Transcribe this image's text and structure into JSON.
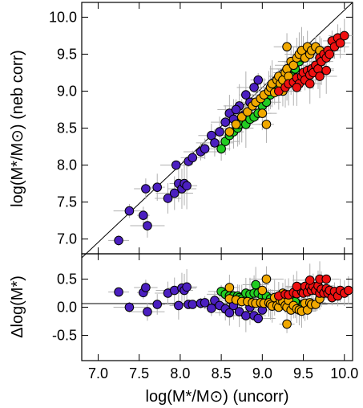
{
  "chart_data": [
    {
      "type": "scatter",
      "panel": "top",
      "ylabel": "log(M*/M⊙) (neb corr)",
      "xlim": [
        6.8,
        10.1
      ],
      "ylim": [
        6.8,
        10.2
      ],
      "x_ticks": [
        "7.0",
        "7.5",
        "8.0",
        "8.5",
        "9.0",
        "9.5",
        "10.0"
      ],
      "y_ticks": [
        "7.0",
        "7.5",
        "8.0",
        "8.5",
        "9.0",
        "9.5",
        "10.0"
      ],
      "reference_line": "one-to-one",
      "error_bars": true,
      "series": [
        {
          "color": "#4b1fc0",
          "points": [
            [
              7.25,
              6.98
            ],
            [
              7.38,
              7.38
            ],
            [
              7.55,
              7.32
            ],
            [
              7.58,
              7.68
            ],
            [
              7.6,
              7.18
            ],
            [
              7.72,
              7.7
            ],
            [
              7.85,
              7.55
            ],
            [
              7.93,
              7.62
            ],
            [
              7.98,
              7.75
            ],
            [
              8.02,
              7.68
            ],
            [
              8.05,
              7.75
            ],
            [
              8.08,
              7.72
            ],
            [
              7.95,
              8.0
            ],
            [
              8.1,
              8.05
            ],
            [
              8.15,
              8.1
            ],
            [
              8.25,
              8.18
            ],
            [
              8.3,
              8.22
            ],
            [
              8.38,
              8.4
            ],
            [
              8.42,
              8.3
            ],
            [
              8.48,
              8.45
            ],
            [
              8.55,
              8.58
            ],
            [
              8.6,
              8.7
            ],
            [
              8.65,
              8.62
            ],
            [
              8.72,
              8.8
            ],
            [
              8.8,
              8.95
            ],
            [
              8.85,
              8.85
            ],
            [
              8.9,
              9.05
            ],
            [
              8.95,
              9.15
            ],
            [
              8.78,
              8.68
            ],
            [
              8.68,
              8.75
            ]
          ]
        },
        {
          "color": "#22cc22",
          "points": [
            [
              8.5,
              8.22
            ],
            [
              8.55,
              8.32
            ],
            [
              8.6,
              8.4
            ],
            [
              8.65,
              8.45
            ],
            [
              8.7,
              8.5
            ],
            [
              8.72,
              8.55
            ],
            [
              8.75,
              8.6
            ],
            [
              8.8,
              8.55
            ],
            [
              8.85,
              8.62
            ],
            [
              8.9,
              8.65
            ],
            [
              8.95,
              8.7
            ],
            [
              9.0,
              8.8
            ],
            [
              9.05,
              8.85
            ],
            [
              9.1,
              8.95
            ],
            [
              9.15,
              9.0
            ],
            [
              9.2,
              9.05
            ],
            [
              9.3,
              9.1
            ],
            [
              9.35,
              9.2
            ],
            [
              9.45,
              9.4
            ],
            [
              9.5,
              9.45
            ],
            [
              9.55,
              9.5
            ],
            [
              9.4,
              9.3
            ]
          ]
        },
        {
          "color": "#f0a800",
          "points": [
            [
              8.6,
              8.45
            ],
            [
              8.68,
              8.55
            ],
            [
              8.75,
              8.65
            ],
            [
              8.82,
              8.72
            ],
            [
              8.88,
              8.8
            ],
            [
              8.92,
              8.85
            ],
            [
              8.98,
              8.9
            ],
            [
              9.02,
              8.95
            ],
            [
              9.05,
              8.55
            ],
            [
              9.08,
              9.0
            ],
            [
              9.1,
              9.05
            ],
            [
              9.12,
              9.1
            ],
            [
              9.15,
              8.98
            ],
            [
              9.18,
              9.15
            ],
            [
              9.2,
              9.2
            ],
            [
              9.22,
              9.1
            ],
            [
              9.25,
              9.15
            ],
            [
              9.28,
              9.25
            ],
            [
              9.3,
              9.3
            ],
            [
              9.32,
              9.2
            ],
            [
              9.35,
              9.4
            ],
            [
              9.38,
              9.35
            ],
            [
              9.42,
              9.45
            ],
            [
              9.45,
              9.5
            ],
            [
              9.48,
              9.55
            ],
            [
              9.52,
              9.45
            ],
            [
              9.55,
              9.6
            ],
            [
              9.58,
              9.5
            ],
            [
              9.6,
              9.55
            ],
            [
              9.65,
              9.6
            ],
            [
              9.7,
              9.55
            ],
            [
              9.3,
              9.6
            ],
            [
              9.25,
              9.0
            ],
            [
              9.0,
              8.7
            ]
          ]
        },
        {
          "color": "#ee1111",
          "points": [
            [
              9.2,
              9.0
            ],
            [
              9.28,
              9.05
            ],
            [
              9.32,
              9.1
            ],
            [
              9.38,
              9.12
            ],
            [
              9.42,
              9.18
            ],
            [
              9.45,
              9.1
            ],
            [
              9.48,
              9.2
            ],
            [
              9.5,
              9.25
            ],
            [
              9.52,
              9.15
            ],
            [
              9.55,
              9.28
            ],
            [
              9.58,
              9.22
            ],
            [
              9.6,
              9.3
            ],
            [
              9.62,
              9.25
            ],
            [
              9.65,
              9.35
            ],
            [
              9.68,
              9.3
            ],
            [
              9.7,
              9.45
            ],
            [
              9.72,
              9.4
            ],
            [
              9.75,
              9.5
            ],
            [
              9.78,
              9.45
            ],
            [
              9.8,
              9.55
            ],
            [
              9.82,
              9.5
            ],
            [
              9.85,
              9.68
            ],
            [
              9.88,
              9.6
            ],
            [
              9.92,
              9.72
            ],
            [
              9.95,
              9.65
            ],
            [
              10.0,
              9.75
            ],
            [
              9.42,
              9.05
            ],
            [
              9.58,
              9.1
            ],
            [
              9.7,
              9.2
            ],
            [
              9.78,
              9.28
            ]
          ]
        }
      ]
    },
    {
      "type": "scatter",
      "panel": "bottom",
      "xlabel": "log(M*/M⊙) (uncorr)",
      "ylabel": "Δlog(M*)",
      "xlim": [
        6.8,
        10.1
      ],
      "ylim": [
        -0.95,
        0.95
      ],
      "x_ticks": [
        "7.0",
        "7.5",
        "8.0",
        "8.5",
        "9.0",
        "9.5",
        "10.0"
      ],
      "y_ticks": [
        "0.5",
        "0.0",
        "-0.5"
      ],
      "reference_line": "zero",
      "error_bars": true,
      "series": [
        {
          "color": "#4b1fc0",
          "points": [
            [
              7.25,
              0.27
            ],
            [
              7.38,
              0.0
            ],
            [
              7.55,
              0.26
            ],
            [
              7.58,
              0.35
            ],
            [
              7.6,
              -0.08
            ],
            [
              7.72,
              0.05
            ],
            [
              7.85,
              0.25
            ],
            [
              7.93,
              0.3
            ],
            [
              7.98,
              0.03
            ],
            [
              8.02,
              0.34
            ],
            [
              8.05,
              0.3
            ],
            [
              8.08,
              0.36
            ],
            [
              8.1,
              0.05
            ],
            [
              8.15,
              0.05
            ],
            [
              8.25,
              0.07
            ],
            [
              8.3,
              0.08
            ],
            [
              8.38,
              -0.02
            ],
            [
              8.42,
              0.12
            ],
            [
              8.48,
              0.03
            ],
            [
              8.55,
              -0.03
            ],
            [
              8.6,
              -0.1
            ],
            [
              8.65,
              0.03
            ],
            [
              8.72,
              -0.08
            ],
            [
              8.8,
              -0.15
            ],
            [
              8.85,
              0.0
            ],
            [
              8.9,
              -0.15
            ],
            [
              8.95,
              -0.2
            ],
            [
              9.0,
              -0.05
            ]
          ]
        },
        {
          "color": "#22cc22",
          "points": [
            [
              8.5,
              0.28
            ],
            [
              8.55,
              0.23
            ],
            [
              8.6,
              0.2
            ],
            [
              8.65,
              0.2
            ],
            [
              8.7,
              0.2
            ],
            [
              8.72,
              0.17
            ],
            [
              8.75,
              0.15
            ],
            [
              8.8,
              0.25
            ],
            [
              8.85,
              0.23
            ],
            [
              8.9,
              0.25
            ],
            [
              8.95,
              0.25
            ],
            [
              9.0,
              0.2
            ],
            [
              9.05,
              0.2
            ],
            [
              9.1,
              0.15
            ],
            [
              9.15,
              0.15
            ],
            [
              9.2,
              0.15
            ],
            [
              9.3,
              0.2
            ],
            [
              9.35,
              0.15
            ],
            [
              9.45,
              0.05
            ],
            [
              9.5,
              0.05
            ],
            [
              9.55,
              0.05
            ],
            [
              9.4,
              0.1
            ],
            [
              8.92,
              0.4
            ]
          ]
        },
        {
          "color": "#f0a800",
          "points": [
            [
              8.6,
              0.15
            ],
            [
              8.68,
              0.13
            ],
            [
              8.75,
              0.1
            ],
            [
              8.82,
              0.1
            ],
            [
              8.88,
              0.08
            ],
            [
              8.92,
              0.07
            ],
            [
              8.98,
              0.08
            ],
            [
              9.02,
              0.07
            ],
            [
              9.05,
              0.5
            ],
            [
              9.08,
              0.08
            ],
            [
              9.1,
              0.05
            ],
            [
              9.12,
              0.02
            ],
            [
              9.15,
              0.17
            ],
            [
              9.18,
              0.03
            ],
            [
              9.2,
              0.0
            ],
            [
              9.22,
              0.12
            ],
            [
              9.25,
              0.1
            ],
            [
              9.28,
              0.03
            ],
            [
              9.3,
              0.0
            ],
            [
              9.32,
              0.12
            ],
            [
              9.35,
              -0.05
            ],
            [
              9.38,
              0.03
            ],
            [
              9.42,
              -0.03
            ],
            [
              9.45,
              -0.05
            ],
            [
              9.48,
              -0.07
            ],
            [
              9.52,
              0.07
            ],
            [
              9.55,
              -0.05
            ],
            [
              9.58,
              0.08
            ],
            [
              9.6,
              0.05
            ],
            [
              9.65,
              0.05
            ],
            [
              9.7,
              0.15
            ],
            [
              9.3,
              -0.3
            ],
            [
              9.25,
              0.25
            ],
            [
              9.0,
              0.3
            ],
            [
              8.6,
              0.35
            ]
          ]
        },
        {
          "color": "#ee1111",
          "points": [
            [
              9.2,
              0.2
            ],
            [
              9.28,
              0.23
            ],
            [
              9.32,
              0.22
            ],
            [
              9.38,
              0.26
            ],
            [
              9.42,
              0.24
            ],
            [
              9.45,
              0.35
            ],
            [
              9.48,
              0.28
            ],
            [
              9.5,
              0.25
            ],
            [
              9.52,
              0.37
            ],
            [
              9.55,
              0.27
            ],
            [
              9.58,
              0.36
            ],
            [
              9.6,
              0.3
            ],
            [
              9.62,
              0.37
            ],
            [
              9.65,
              0.3
            ],
            [
              9.68,
              0.38
            ],
            [
              9.7,
              0.25
            ],
            [
              9.72,
              0.32
            ],
            [
              9.75,
              0.25
            ],
            [
              9.78,
              0.33
            ],
            [
              9.8,
              0.25
            ],
            [
              9.82,
              0.3
            ],
            [
              9.85,
              0.17
            ],
            [
              9.88,
              0.28
            ],
            [
              9.92,
              0.2
            ],
            [
              9.95,
              0.3
            ],
            [
              10.0,
              0.25
            ],
            [
              10.05,
              0.3
            ],
            [
              9.42,
              0.37
            ],
            [
              9.58,
              0.48
            ],
            [
              9.7,
              0.5
            ],
            [
              9.78,
              0.5
            ]
          ]
        }
      ]
    }
  ]
}
